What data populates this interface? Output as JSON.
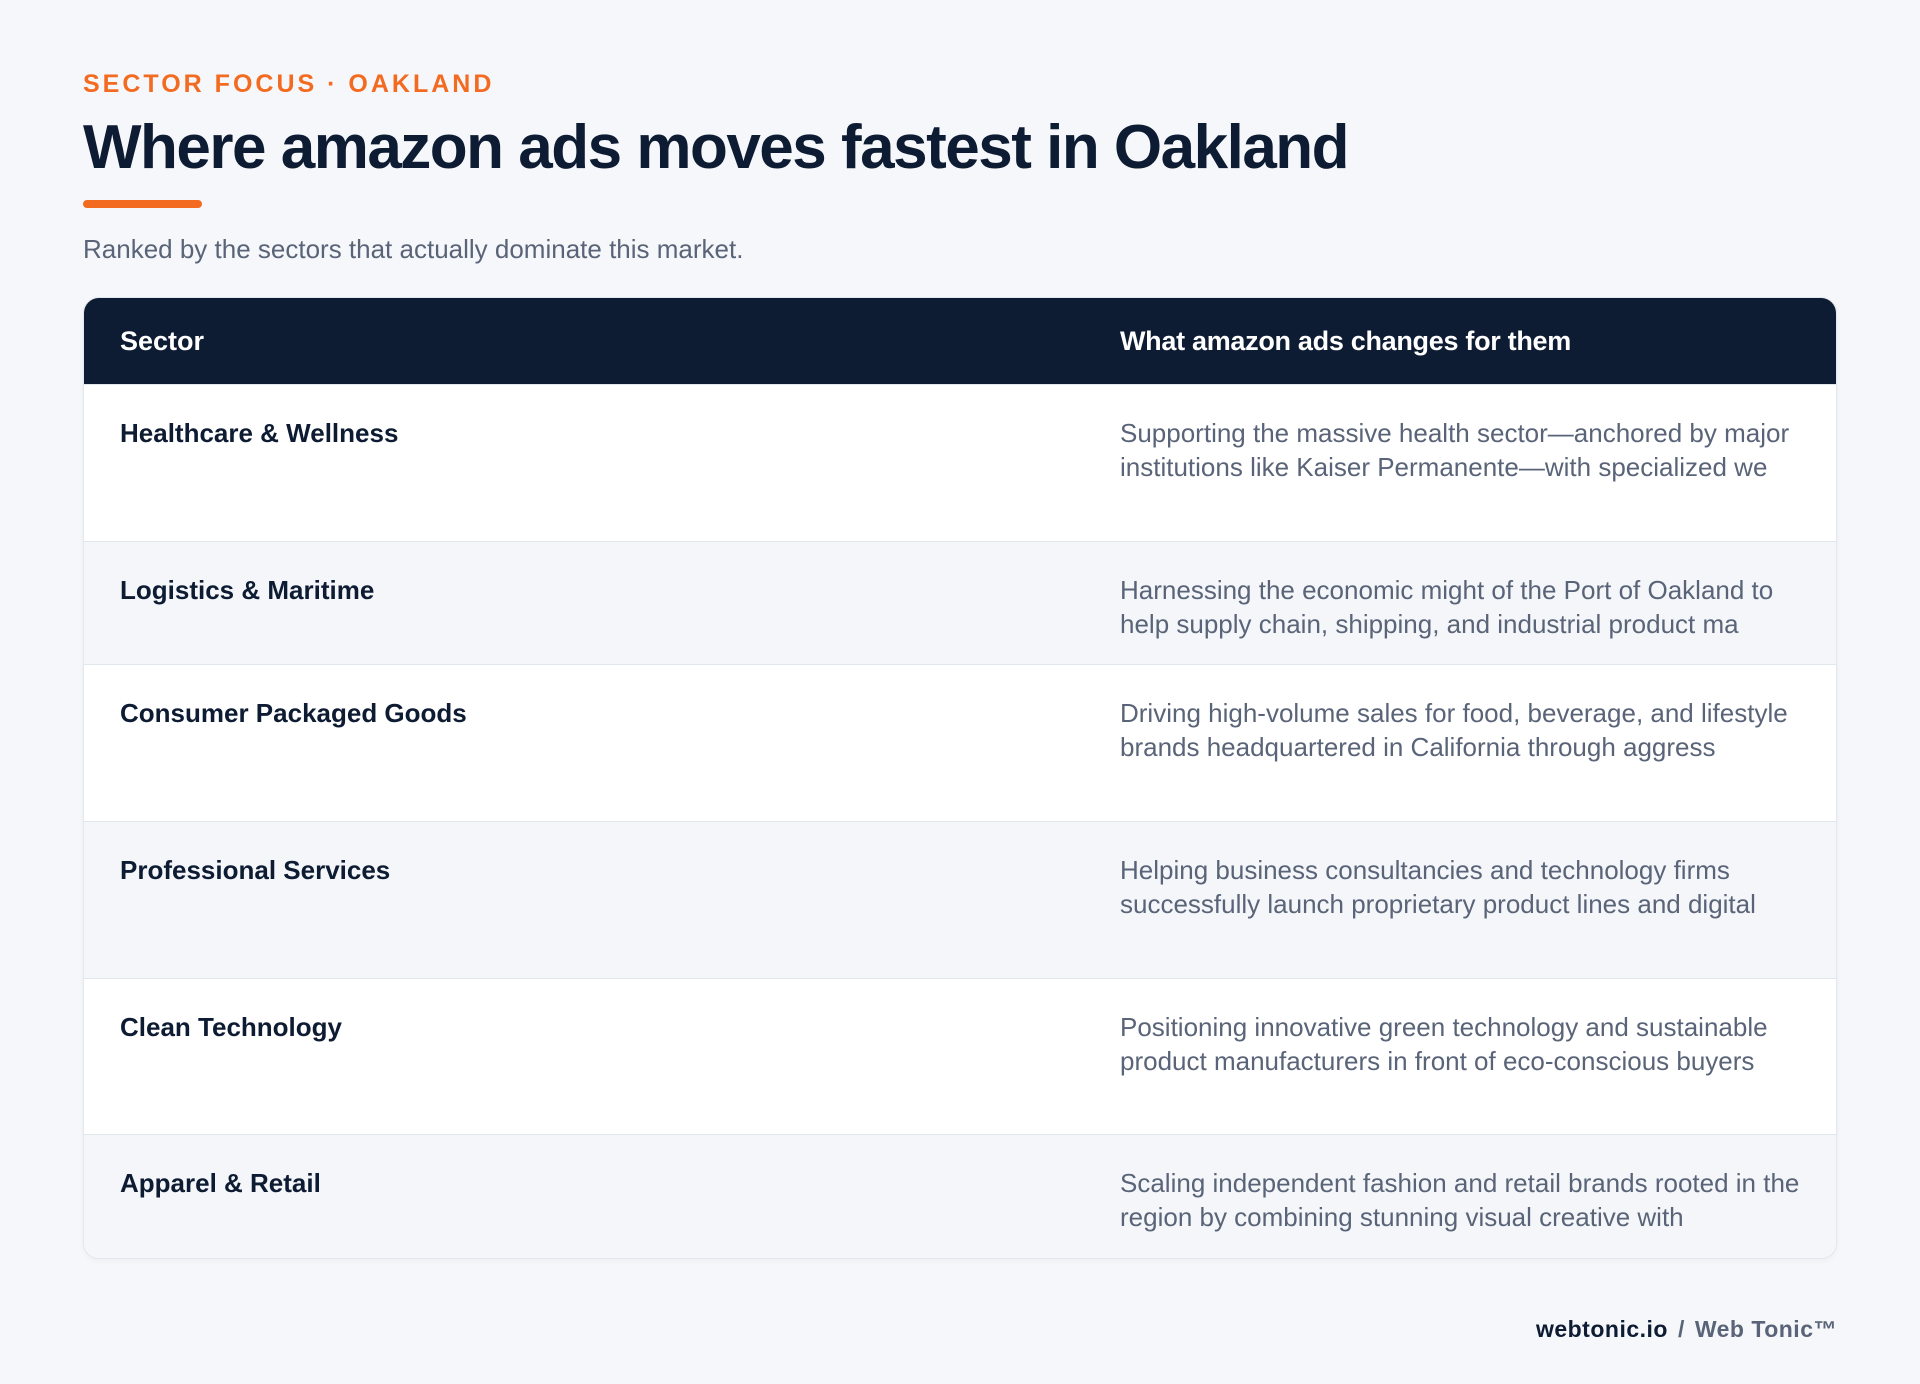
{
  "header": {
    "eyebrow": "SECTOR FOCUS · OAKLAND",
    "title": "Where amazon ads moves fastest in Oakland",
    "subtitle": "Ranked by the sectors that actually dominate this market."
  },
  "table": {
    "columns": [
      "Sector",
      "What amazon ads changes for them"
    ],
    "rows": [
      {
        "sector": "Healthcare & Wellness",
        "description": "Supporting the massive health sector—anchored by major institutions like Kaiser Permanente—with specialized we"
      },
      {
        "sector": "Logistics & Maritime",
        "description": "Harnessing the economic might of the Port of Oakland to help supply chain, shipping, and industrial product ma"
      },
      {
        "sector": "Consumer Packaged Goods",
        "description": "Driving high-volume sales for food, beverage, and lifestyle brands headquartered in California through aggress"
      },
      {
        "sector": "Professional Services",
        "description": "Helping business consultancies and technology firms successfully launch proprietary product lines and digital"
      },
      {
        "sector": "Clean Technology",
        "description": "Positioning innovative green technology and sustainable product manufacturers in front of eco-conscious buyers"
      },
      {
        "sector": "Apparel & Retail",
        "description": "Scaling independent fashion and retail brands rooted in the region by combining stunning visual creative with"
      }
    ]
  },
  "footer": {
    "domain": "webtonic.io",
    "separator": "/",
    "brand": "Web Tonic™"
  },
  "colors": {
    "accent": "#f36b21",
    "navy": "#0d1b33",
    "muted": "#5a6478",
    "background": "#f5f7fa"
  }
}
